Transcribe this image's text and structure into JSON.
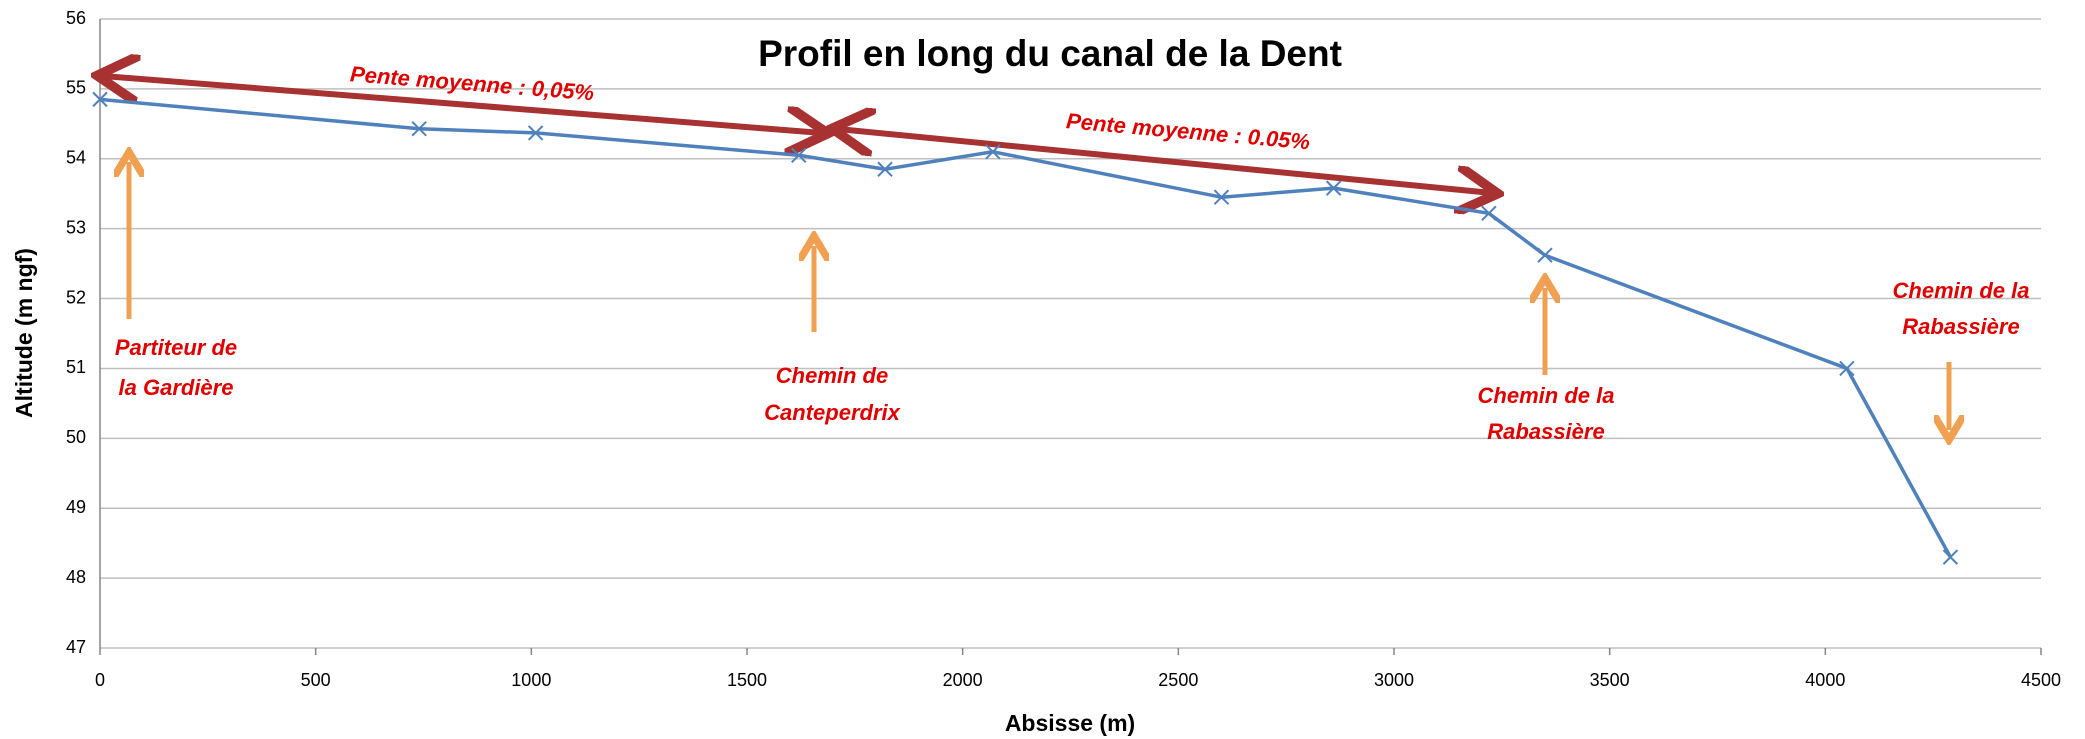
{
  "chart_data": {
    "type": "line",
    "title": "Profil en long du canal de la Dent",
    "x_label": "Absisse (m)",
    "y_label": "Altitude (m ngf)",
    "x": [
      0,
      740,
      1010,
      1620,
      1820,
      2070,
      2600,
      2860,
      3220,
      3350,
      4050,
      4290
    ],
    "series": [
      {
        "color": "#4f81bd",
        "values": [
          54.85,
          54.43,
          54.37,
          54.05,
          53.85,
          54.1,
          53.45,
          53.58,
          53.22,
          52.62,
          51.0,
          48.3
        ]
      }
    ],
    "xlim": [
      0,
      4500
    ],
    "xticks": [
      0,
      500,
      1000,
      1500,
      2000,
      2500,
      3000,
      3500,
      4000,
      4500
    ],
    "ylim": [
      47,
      56
    ],
    "yticks": [
      47,
      48,
      49,
      50,
      51,
      52,
      53,
      54,
      55,
      56
    ],
    "grid": true,
    "annotations": [
      {
        "text": [
          "Pente moyenne : 0,05%"
        ]
      },
      {
        "text": [
          "Pente moyenne : 0.05%"
        ]
      },
      {
        "text": [
          "Partiteur de",
          "la Gardière"
        ]
      },
      {
        "text": [
          "Chemin de",
          "Canteperdrix"
        ]
      },
      {
        "text": [
          "Chemin de la",
          "Rabassière"
        ]
      },
      {
        "text": [
          "Chemin de la",
          "Rabassière"
        ]
      }
    ]
  }
}
